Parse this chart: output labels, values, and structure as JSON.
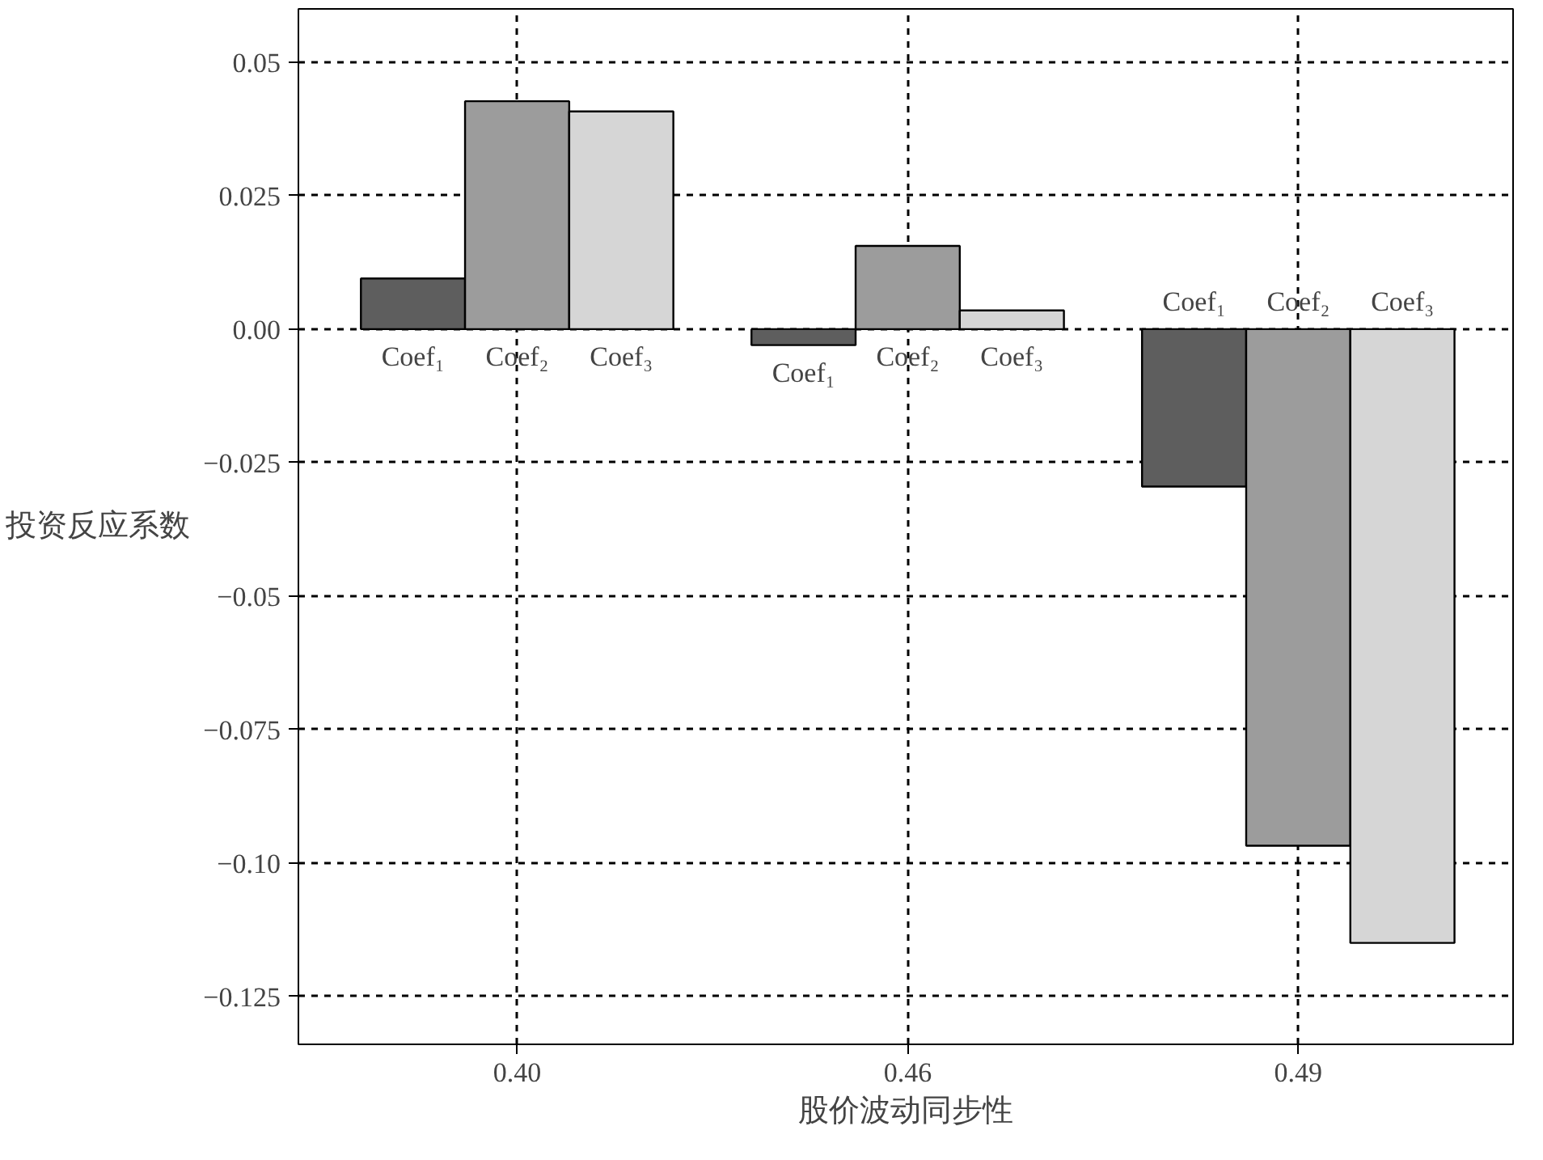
{
  "chart_data": {
    "type": "bar",
    "xlabel": "股价波动同步性",
    "ylabel": "投资反应系数",
    "categories": [
      "0.40",
      "0.46",
      "0.49"
    ],
    "series": [
      {
        "name": "Coef₁",
        "color": "#5e5e5e",
        "values": [
          0.0095,
          -0.003,
          -0.0295
        ]
      },
      {
        "name": "Coef₂",
        "color": "#9c9c9c",
        "values": [
          0.0427,
          0.0156,
          -0.0968
        ]
      },
      {
        "name": "Coef₃",
        "color": "#d6d6d6",
        "values": [
          0.0408,
          0.0035,
          -0.115
        ]
      }
    ],
    "ylim": [
      -0.134,
      0.06
    ],
    "yticks": [
      {
        "value": -0.125,
        "label": "−0.125"
      },
      {
        "value": -0.1,
        "label": "−0.10"
      },
      {
        "value": -0.075,
        "label": "−0.075"
      },
      {
        "value": -0.05,
        "label": "−0.05"
      },
      {
        "value": -0.025,
        "label": "−0.025"
      },
      {
        "value": 0,
        "label": "0.00"
      },
      {
        "value": 0.025,
        "label": "0.025"
      },
      {
        "value": 0.05,
        "label": "0.05"
      }
    ],
    "grid": true
  }
}
